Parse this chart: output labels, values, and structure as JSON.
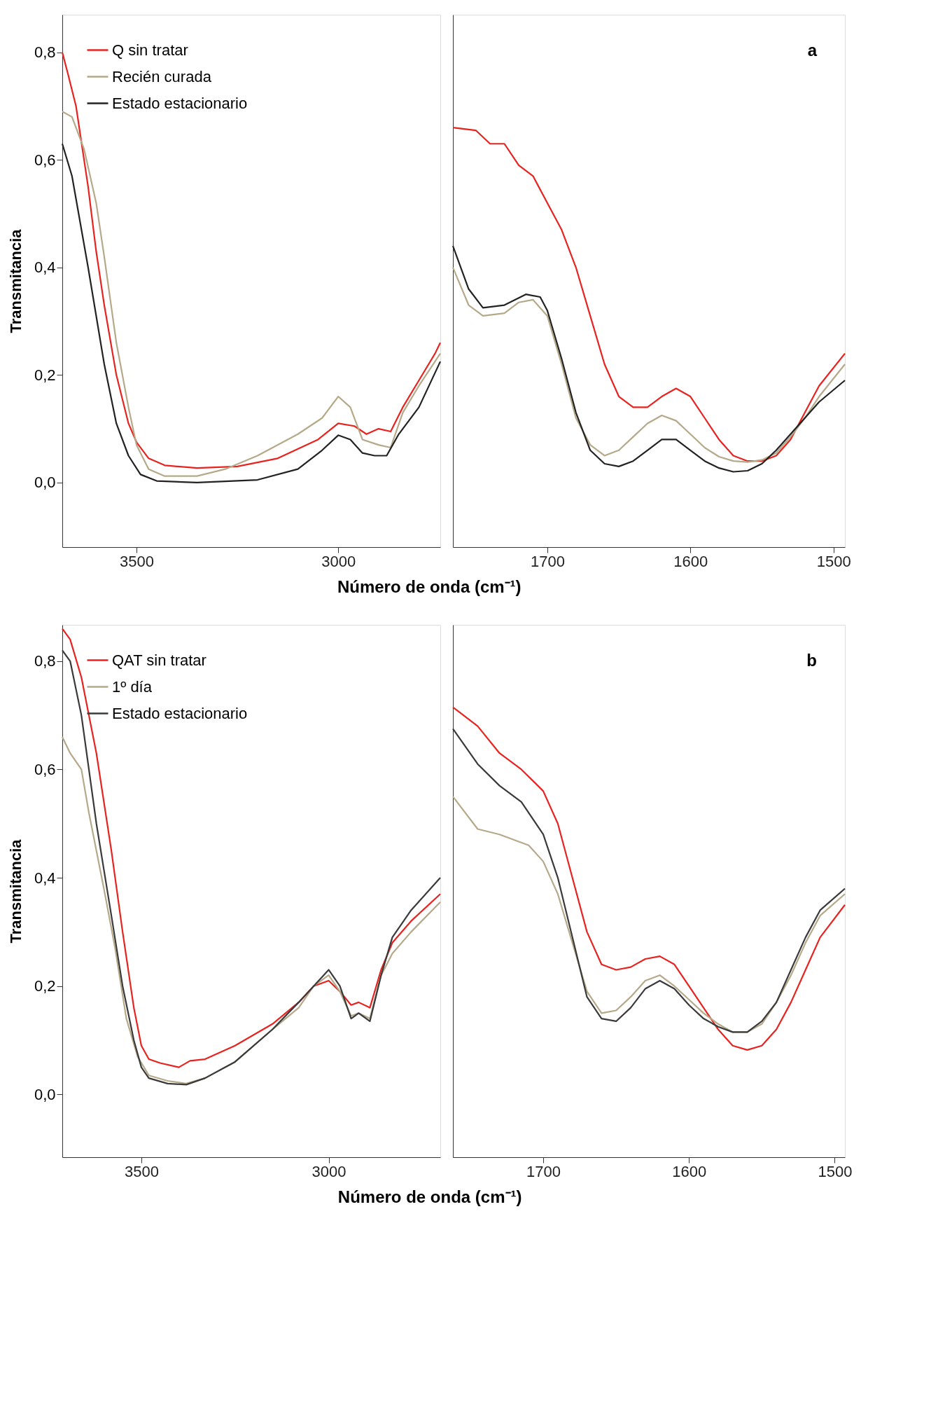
{
  "chart_data": [
    {
      "type": "line",
      "ylabel": "Transmitancia",
      "xlabel": "Número de onda (cm⁻¹)",
      "xlim": [
        3684,
        2747
      ],
      "xticks": [
        3500,
        3000
      ],
      "ylim": [
        -0.12,
        0.87
      ],
      "yticks": [
        {
          "value": 0.0,
          "label": "0,0"
        },
        {
          "value": 0.2,
          "label": "0,2"
        },
        {
          "value": 0.4,
          "label": "0,4"
        },
        {
          "value": 0.6,
          "label": "0,6"
        },
        {
          "value": 0.8,
          "label": "0,8"
        }
      ],
      "grid": false,
      "legend": "top left",
      "marker": "none",
      "line_style": "solid",
      "series": [
        {
          "name": "Q sin tratar",
          "color": "#e8231f",
          "x": [
            3684,
            3670,
            3650,
            3620,
            3600,
            3580,
            3550,
            3520,
            3500,
            3470,
            3430,
            3350,
            3250,
            3150,
            3050,
            3000,
            2960,
            2930,
            2900,
            2870,
            2840,
            2800,
            2760,
            2747
          ],
          "values": [
            0.8,
            0.76,
            0.7,
            0.55,
            0.43,
            0.33,
            0.2,
            0.11,
            0.075,
            0.045,
            0.032,
            0.027,
            0.03,
            0.045,
            0.08,
            0.11,
            0.105,
            0.09,
            0.1,
            0.095,
            0.14,
            0.19,
            0.24,
            0.26
          ]
        },
        {
          "name": "Recién curada",
          "color": "#b5a98a",
          "x": [
            3684,
            3660,
            3630,
            3600,
            3580,
            3550,
            3520,
            3500,
            3470,
            3430,
            3350,
            3280,
            3200,
            3100,
            3040,
            3000,
            2970,
            2940,
            2900,
            2870,
            2840,
            2800,
            2747
          ],
          "values": [
            0.69,
            0.68,
            0.62,
            0.52,
            0.42,
            0.26,
            0.14,
            0.07,
            0.025,
            0.012,
            0.012,
            0.025,
            0.05,
            0.09,
            0.12,
            0.16,
            0.14,
            0.08,
            0.07,
            0.065,
            0.13,
            0.18,
            0.24
          ]
        },
        {
          "name": "Estado estacionario",
          "color": "#222222",
          "x": [
            3684,
            3660,
            3620,
            3580,
            3550,
            3520,
            3490,
            3450,
            3350,
            3200,
            3100,
            3040,
            3000,
            2970,
            2940,
            2910,
            2880,
            2850,
            2800,
            2747
          ],
          "values": [
            0.63,
            0.57,
            0.4,
            0.22,
            0.11,
            0.05,
            0.015,
            0.003,
            0.0,
            0.005,
            0.025,
            0.06,
            0.088,
            0.08,
            0.055,
            0.05,
            0.05,
            0.09,
            0.14,
            0.225
          ]
        }
      ]
    },
    {
      "type": "line",
      "annotations": [
        "a"
      ],
      "xlim": [
        1766,
        1492
      ],
      "xticks": [
        1700,
        1600,
        1500
      ],
      "ylim": [
        -0.12,
        0.87
      ],
      "tick_labels": "x",
      "grid": false,
      "marker": "none",
      "line_style": "solid",
      "series": [
        {
          "color": "#e8231f",
          "x": [
            1766,
            1750,
            1740,
            1730,
            1720,
            1710,
            1700,
            1690,
            1680,
            1670,
            1660,
            1650,
            1640,
            1630,
            1620,
            1610,
            1600,
            1590,
            1580,
            1570,
            1560,
            1550,
            1540,
            1530,
            1520,
            1510,
            1492
          ],
          "values": [
            0.66,
            0.655,
            0.63,
            0.63,
            0.59,
            0.57,
            0.52,
            0.47,
            0.4,
            0.31,
            0.22,
            0.16,
            0.14,
            0.14,
            0.16,
            0.175,
            0.16,
            0.12,
            0.08,
            0.05,
            0.04,
            0.04,
            0.05,
            0.08,
            0.13,
            0.18,
            0.24
          ]
        },
        {
          "color": "#b5a98a",
          "x": [
            1766,
            1755,
            1745,
            1730,
            1720,
            1710,
            1700,
            1690,
            1680,
            1670,
            1660,
            1650,
            1640,
            1630,
            1620,
            1610,
            1600,
            1590,
            1580,
            1570,
            1560,
            1550,
            1540,
            1530,
            1520,
            1510,
            1492
          ],
          "values": [
            0.4,
            0.33,
            0.31,
            0.315,
            0.335,
            0.34,
            0.31,
            0.22,
            0.12,
            0.07,
            0.05,
            0.06,
            0.085,
            0.11,
            0.125,
            0.115,
            0.09,
            0.065,
            0.048,
            0.04,
            0.038,
            0.042,
            0.055,
            0.085,
            0.12,
            0.16,
            0.22
          ]
        },
        {
          "color": "#222222",
          "x": [
            1766,
            1755,
            1745,
            1730,
            1715,
            1705,
            1700,
            1690,
            1680,
            1670,
            1660,
            1650,
            1640,
            1630,
            1620,
            1610,
            1600,
            1590,
            1580,
            1570,
            1560,
            1550,
            1540,
            1530,
            1520,
            1510,
            1492
          ],
          "values": [
            0.44,
            0.36,
            0.325,
            0.33,
            0.35,
            0.345,
            0.32,
            0.23,
            0.13,
            0.06,
            0.035,
            0.03,
            0.04,
            0.06,
            0.08,
            0.08,
            0.06,
            0.04,
            0.027,
            0.02,
            0.022,
            0.035,
            0.06,
            0.09,
            0.12,
            0.15,
            0.19
          ]
        }
      ]
    },
    {
      "type": "line",
      "ylabel": "Transmitancia",
      "xlabel": "Número de onda (cm⁻¹)",
      "xlim": [
        3711,
        2702
      ],
      "xticks": [
        3500,
        3000
      ],
      "ylim": [
        -0.116,
        0.867
      ],
      "yticks": [
        {
          "value": 0.0,
          "label": "0,0"
        },
        {
          "value": 0.2,
          "label": "0,2"
        },
        {
          "value": 0.4,
          "label": "0,4"
        },
        {
          "value": 0.6,
          "label": "0,6"
        },
        {
          "value": 0.8,
          "label": "0,8"
        }
      ],
      "grid": false,
      "legend": "top left",
      "marker": "none",
      "line_style": "solid",
      "series": [
        {
          "name": "QAT sin tratar",
          "color": "#e8231f",
          "x": [
            3711,
            3690,
            3660,
            3620,
            3580,
            3550,
            3520,
            3500,
            3480,
            3450,
            3400,
            3370,
            3330,
            3250,
            3150,
            3080,
            3040,
            3000,
            2970,
            2940,
            2920,
            2890,
            2860,
            2830,
            2780,
            2702
          ],
          "values": [
            0.86,
            0.84,
            0.77,
            0.63,
            0.45,
            0.3,
            0.16,
            0.09,
            0.065,
            0.058,
            0.05,
            0.062,
            0.065,
            0.09,
            0.13,
            0.17,
            0.2,
            0.21,
            0.19,
            0.165,
            0.17,
            0.16,
            0.23,
            0.28,
            0.32,
            0.37
          ]
        },
        {
          "name": "1º día",
          "color": "#b5a98a",
          "x": [
            3711,
            3690,
            3660,
            3640,
            3600,
            3570,
            3540,
            3510,
            3480,
            3430,
            3380,
            3330,
            3250,
            3150,
            3080,
            3040,
            3000,
            2970,
            2940,
            2920,
            2890,
            2860,
            2830,
            2780,
            2702
          ],
          "values": [
            0.66,
            0.63,
            0.6,
            0.52,
            0.38,
            0.27,
            0.14,
            0.07,
            0.035,
            0.025,
            0.02,
            0.03,
            0.06,
            0.12,
            0.16,
            0.2,
            0.22,
            0.19,
            0.145,
            0.15,
            0.14,
            0.22,
            0.26,
            0.3,
            0.355
          ]
        },
        {
          "name": "Estado estacionario",
          "color": "#3a3a3a",
          "x": [
            3711,
            3690,
            3660,
            3620,
            3580,
            3550,
            3520,
            3500,
            3480,
            3430,
            3380,
            3330,
            3250,
            3150,
            3080,
            3040,
            3000,
            2970,
            2940,
            2920,
            2890,
            2860,
            2830,
            2780,
            2702
          ],
          "values": [
            0.82,
            0.8,
            0.7,
            0.5,
            0.33,
            0.2,
            0.1,
            0.05,
            0.03,
            0.02,
            0.018,
            0.03,
            0.06,
            0.12,
            0.17,
            0.2,
            0.23,
            0.2,
            0.14,
            0.15,
            0.135,
            0.22,
            0.29,
            0.34,
            0.4
          ]
        }
      ]
    },
    {
      "type": "line",
      "annotations": [
        "b"
      ],
      "xlim": [
        1762,
        1493
      ],
      "xticks": [
        1700,
        1600,
        1500
      ],
      "ylim": [
        -0.116,
        0.867
      ],
      "tick_labels": "x",
      "grid": false,
      "marker": "none",
      "line_style": "solid",
      "series": [
        {
          "color": "#e8231f",
          "x": [
            1762,
            1745,
            1730,
            1715,
            1700,
            1690,
            1680,
            1670,
            1660,
            1650,
            1640,
            1630,
            1620,
            1610,
            1600,
            1590,
            1580,
            1570,
            1560,
            1550,
            1540,
            1530,
            1520,
            1510,
            1493
          ],
          "values": [
            0.715,
            0.68,
            0.63,
            0.6,
            0.56,
            0.5,
            0.4,
            0.3,
            0.24,
            0.23,
            0.235,
            0.25,
            0.255,
            0.24,
            0.2,
            0.16,
            0.12,
            0.09,
            0.082,
            0.09,
            0.12,
            0.17,
            0.23,
            0.29,
            0.35
          ]
        },
        {
          "color": "#b5a98a",
          "x": [
            1762,
            1745,
            1730,
            1720,
            1710,
            1700,
            1690,
            1680,
            1670,
            1660,
            1650,
            1640,
            1630,
            1620,
            1610,
            1600,
            1590,
            1580,
            1570,
            1560,
            1550,
            1540,
            1530,
            1520,
            1510,
            1493
          ],
          "values": [
            0.55,
            0.49,
            0.48,
            0.47,
            0.46,
            0.43,
            0.37,
            0.28,
            0.19,
            0.15,
            0.155,
            0.18,
            0.21,
            0.22,
            0.2,
            0.175,
            0.15,
            0.13,
            0.115,
            0.115,
            0.13,
            0.17,
            0.22,
            0.28,
            0.33,
            0.37
          ]
        },
        {
          "color": "#3a3a3a",
          "x": [
            1762,
            1745,
            1730,
            1715,
            1700,
            1690,
            1680,
            1670,
            1660,
            1650,
            1640,
            1630,
            1620,
            1610,
            1600,
            1590,
            1580,
            1570,
            1560,
            1550,
            1540,
            1530,
            1520,
            1510,
            1493
          ],
          "values": [
            0.675,
            0.61,
            0.57,
            0.54,
            0.48,
            0.4,
            0.29,
            0.18,
            0.14,
            0.135,
            0.16,
            0.195,
            0.21,
            0.195,
            0.165,
            0.14,
            0.125,
            0.115,
            0.115,
            0.135,
            0.17,
            0.23,
            0.29,
            0.34,
            0.38
          ]
        }
      ]
    }
  ]
}
